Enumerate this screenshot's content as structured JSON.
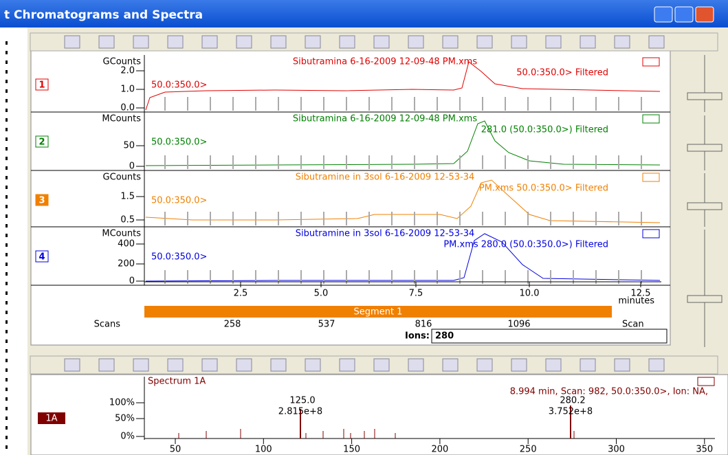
{
  "window": {
    "title": "t Chromatograms and Spectra"
  },
  "chromatograms": [
    {
      "unit": "GCounts",
      "index": "1",
      "title": "Sibutramina 6-16-2009 12-09-48 PM.xms",
      "subtitle": "50.0:350.0> Filtered",
      "range": "50.0:350.0>",
      "yticks": [
        "2.0",
        "1.0",
        "0.0"
      ]
    },
    {
      "unit": "MCounts",
      "index": "2",
      "title": "Sibutramina 6-16-2009 12-09-48 PM.xms",
      "subtitle": "281.0 (50.0:350.0>) Filtered",
      "range": "50.0:350.0>",
      "yticks": [
        "50",
        "0"
      ]
    },
    {
      "unit": "GCounts",
      "index": "3",
      "title": "Sibutramine in 3sol 6-16-2009 12-53-34",
      "subtitle": "PM.xms 50.0:350.0> Filtered",
      "range": "50.0:350.0>",
      "yticks": [
        "1.5",
        "0.5"
      ]
    },
    {
      "unit": "MCounts",
      "index": "4",
      "title": "Sibutramine in 3sol 6-16-2009 12-53-34",
      "subtitle": "PM.xms 280.0 (50.0:350.0>) Filtered",
      "range": "50.0:350.0>",
      "yticks": [
        "400",
        "200",
        "0"
      ]
    }
  ],
  "time_axis": {
    "ticks": [
      "2.5",
      "5.0",
      "7.5",
      "10.0",
      "12.5"
    ],
    "unit": "minutes"
  },
  "segment": "Segment 1",
  "scans": {
    "label": "Scans",
    "ticks": [
      "258",
      "537",
      "816",
      "1096"
    ],
    "right": "Scan"
  },
  "ions": {
    "label": "Ions:",
    "value": "280"
  },
  "spectrum": {
    "index": "1A",
    "title": "Spectrum 1A",
    "info": "8.994 min, Scan: 982, 50.0:350.0>, Ion: NA,",
    "yticks": [
      "100%",
      "50%",
      "0%"
    ],
    "peaks": [
      {
        "mz": "125.0",
        "intensity": "2.815e+8"
      },
      {
        "mz": "280.2",
        "intensity": "3.752e+8"
      }
    ],
    "xticks": [
      "50",
      "100",
      "150",
      "200",
      "250",
      "300",
      "350"
    ]
  }
}
